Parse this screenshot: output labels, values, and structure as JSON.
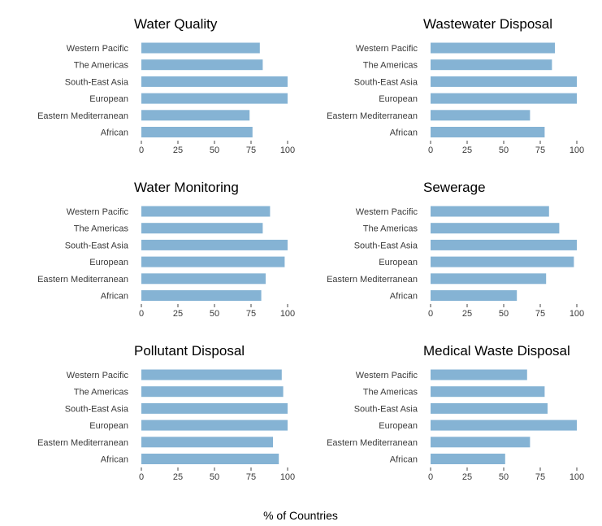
{
  "chart_data": {
    "type": "bar",
    "orientation": "horizontal",
    "xlabel": "% of Countries",
    "xlim": [
      0,
      100
    ],
    "xticks": [
      0,
      25,
      50,
      75,
      100
    ],
    "bar_color": "#85b3d4",
    "grid": false,
    "categories": [
      "Western Pacific",
      "The Americas",
      "South-East Asia",
      "European",
      "Eastern Mediterranean",
      "African"
    ],
    "panels": [
      {
        "title": "Water Quality",
        "values": [
          81,
          83,
          100,
          100,
          74,
          76
        ]
      },
      {
        "title": "Wastewater Disposal",
        "values": [
          85,
          83,
          100,
          100,
          68,
          78
        ]
      },
      {
        "title": "Water Monitoring",
        "values": [
          88,
          83,
          100,
          98,
          85,
          82
        ]
      },
      {
        "title": "Sewerage",
        "values": [
          81,
          88,
          100,
          98,
          79,
          59
        ]
      },
      {
        "title": "Pollutant Disposal",
        "values": [
          96,
          97,
          100,
          100,
          90,
          94
        ]
      },
      {
        "title": "Medical Waste Disposal",
        "values": [
          66,
          78,
          80,
          100,
          68,
          51
        ]
      }
    ]
  }
}
